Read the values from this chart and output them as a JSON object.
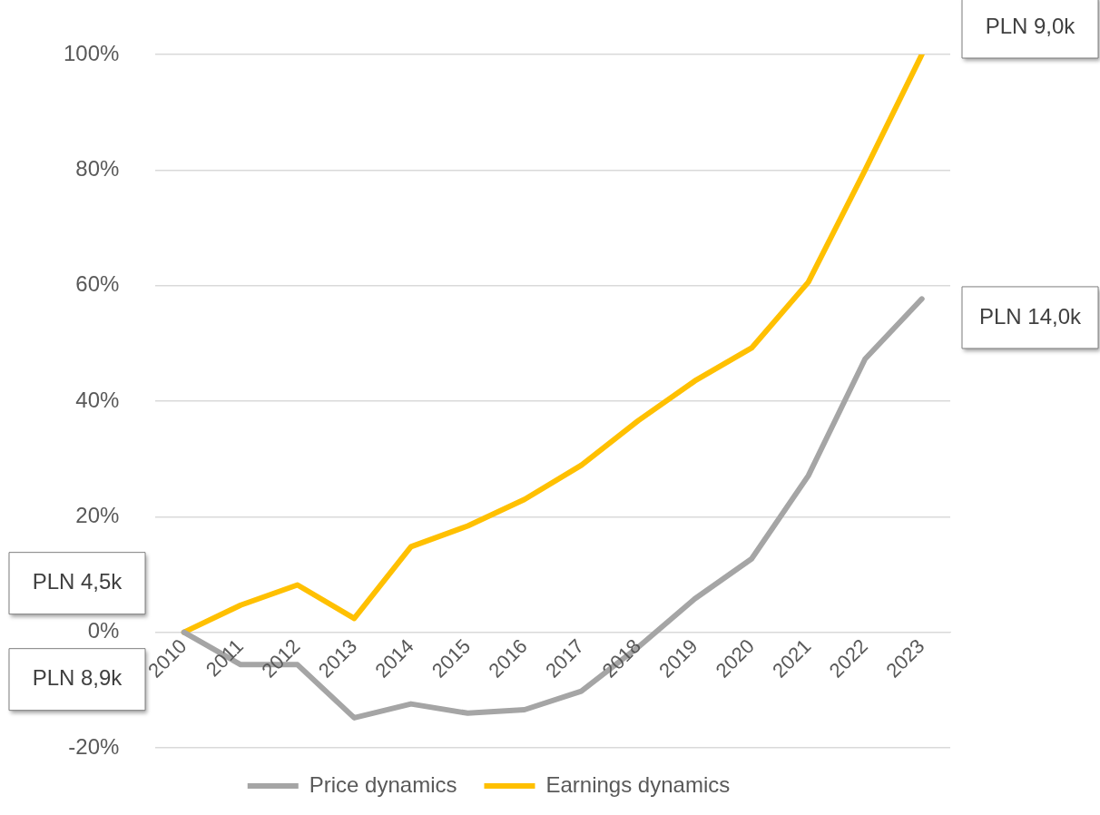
{
  "chart_data": {
    "type": "line",
    "categories": [
      "2010",
      "2011",
      "2012",
      "2013",
      "2014",
      "2015",
      "2016",
      "2017",
      "2018",
      "2019",
      "2020",
      "2021",
      "2022",
      "2023"
    ],
    "series": [
      {
        "name": "Price dynamics",
        "color": "#a5a5a5",
        "values": [
          0,
          -5.6,
          -5.6,
          -14.8,
          -12.4,
          -14,
          -13.4,
          -10.2,
          -2.6,
          5.8,
          12.7,
          27.1,
          47.3,
          57.7
        ]
      },
      {
        "name": "Earnings dynamics",
        "color": "#ffc000",
        "values": [
          0,
          4.7,
          8.2,
          2.4,
          14.8,
          18.4,
          23,
          28.9,
          36.6,
          43.5,
          49.2,
          60.6,
          80,
          100
        ]
      }
    ],
    "ylim": [
      -20,
      100
    ],
    "yticks": [
      {
        "value": -20,
        "label": "-20%"
      },
      {
        "value": 0,
        "label": "0%"
      },
      {
        "value": 20,
        "label": "20%"
      },
      {
        "value": 40,
        "label": "40%"
      },
      {
        "value": 60,
        "label": "60%"
      },
      {
        "value": 80,
        "label": "80%"
      },
      {
        "value": 100,
        "label": "100%"
      }
    ],
    "grid": "y",
    "legend": "bottom",
    "annotations": [
      "PLN 4,5k",
      "PLN 8,9k",
      "PLN 9,0k",
      "PLN 14,0k"
    ]
  }
}
